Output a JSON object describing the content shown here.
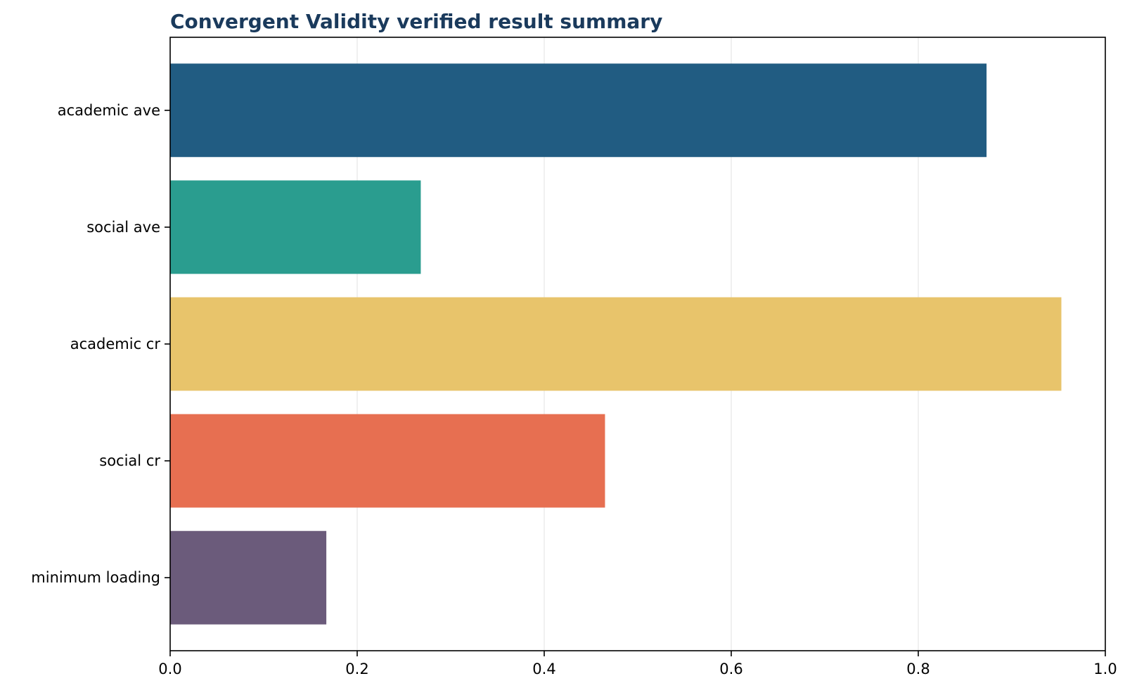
{
  "chart_data": {
    "type": "bar",
    "orientation": "horizontal",
    "title": "Convergent Validity verified result summary",
    "title_color": "#1a3a5c",
    "xlabel": "",
    "ylabel": "",
    "xlim": [
      0,
      1.0
    ],
    "x_ticks": [
      0.0,
      0.2,
      0.4,
      0.6,
      0.8,
      1.0
    ],
    "x_tick_labels": [
      "0.0",
      "0.2",
      "0.4",
      "0.6",
      "0.8",
      "1.0"
    ],
    "grid": "vertical",
    "categories": [
      "academic ave",
      "social ave",
      "academic cr",
      "social cr",
      "minimum loading"
    ],
    "values": [
      0.873,
      0.268,
      0.953,
      0.465,
      0.167
    ],
    "colors": [
      "#215c82",
      "#2a9d8f",
      "#e8c46b",
      "#e76f51",
      "#6b5b7b"
    ]
  }
}
